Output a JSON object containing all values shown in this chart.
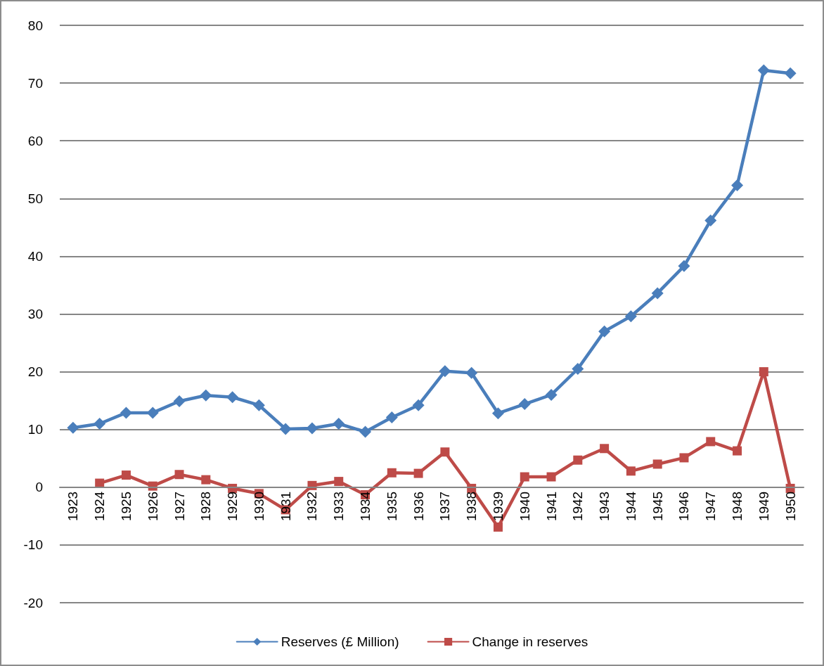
{
  "chart_data": {
    "type": "line",
    "categories": [
      "1923",
      "1924",
      "1925",
      "1926",
      "1927",
      "1928",
      "1929",
      "1930",
      "1931",
      "1932",
      "1933",
      "1934",
      "1935",
      "1936",
      "1937",
      "1938",
      "1939",
      "1940",
      "1941",
      "1942",
      "1943",
      "1944",
      "1945",
      "1946",
      "1947",
      "1948",
      "1949",
      "1950"
    ],
    "series": [
      {
        "name": "Reserves (£ Million)",
        "color": "#4a7ebb",
        "marker": "diamond",
        "values": [
          10.3,
          11.0,
          12.9,
          12.9,
          14.9,
          15.9,
          15.6,
          14.2,
          10.1,
          10.2,
          11.0,
          9.6,
          12.1,
          14.2,
          20.1,
          19.8,
          12.8,
          14.4,
          16.0,
          20.5,
          27.0,
          29.6,
          33.6,
          38.3,
          46.2,
          52.3,
          72.2,
          71.7
        ]
      },
      {
        "name": "Change in reserves",
        "color": "#be4b48",
        "marker": "square",
        "values": [
          null,
          0.7,
          2.1,
          0.2,
          2.2,
          1.3,
          -0.2,
          -1.1,
          -3.9,
          0.3,
          1.0,
          -1.3,
          2.5,
          2.4,
          6.1,
          -0.2,
          -6.9,
          1.8,
          1.8,
          4.7,
          6.7,
          2.8,
          4.0,
          5.1,
          7.9,
          6.3,
          20.0,
          -0.2
        ]
      }
    ],
    "ylim": [
      -20,
      80
    ],
    "yticks": [
      -20,
      -10,
      0,
      10,
      20,
      30,
      40,
      50,
      60,
      70,
      80
    ],
    "grid": "y",
    "legend": "bottom"
  }
}
